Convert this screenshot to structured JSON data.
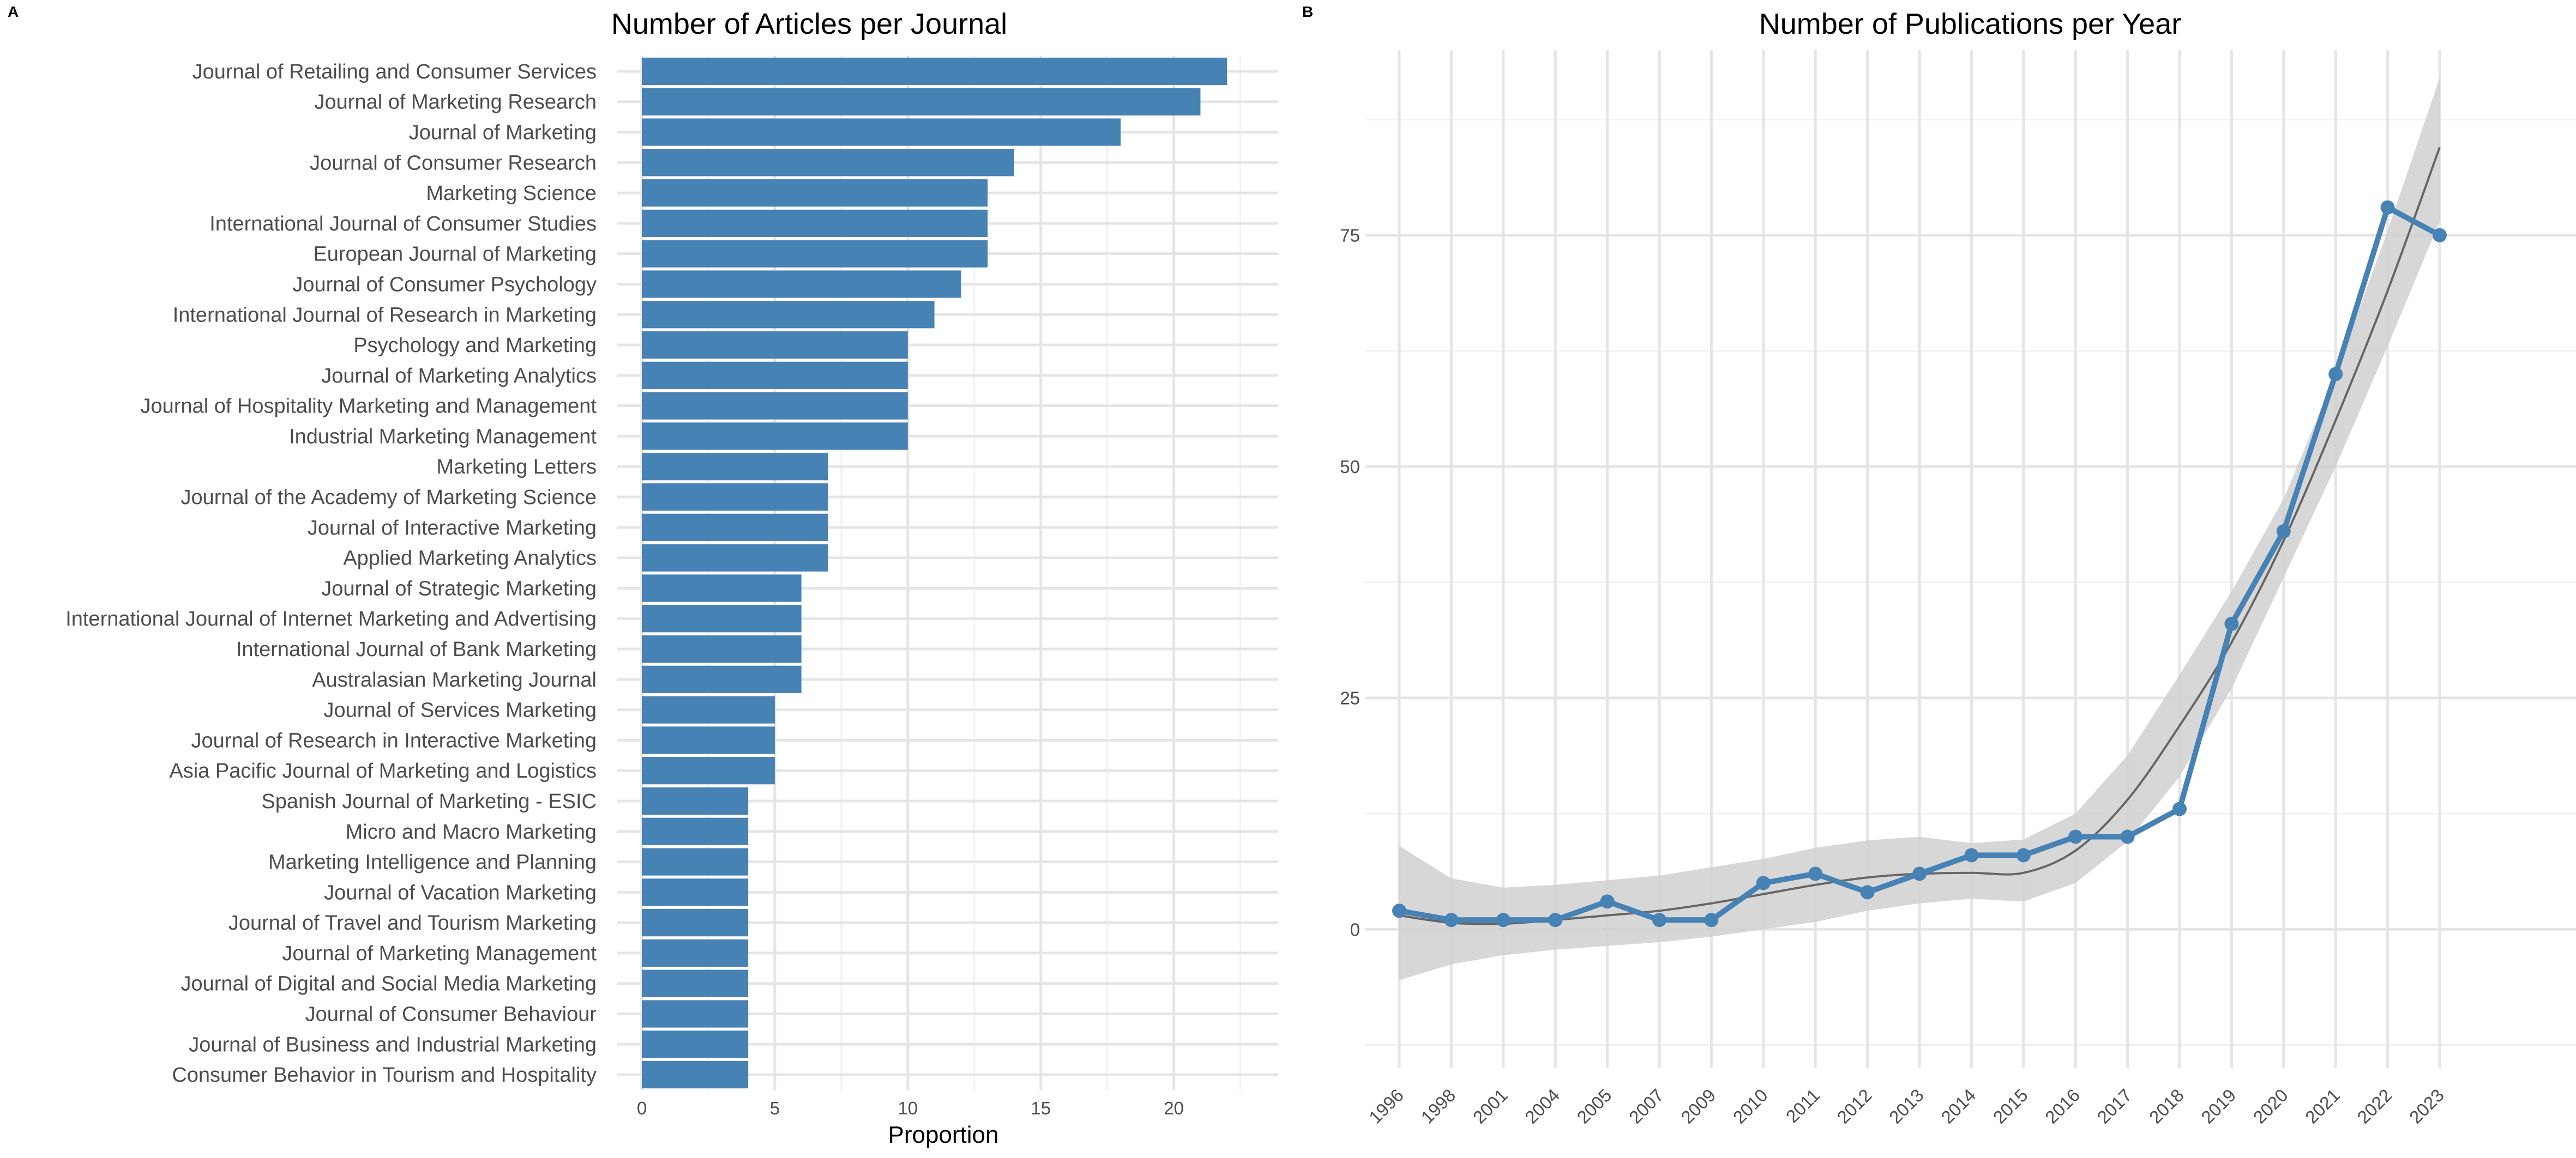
{
  "panels": {
    "a_letter": "A",
    "b_letter": "B"
  },
  "chart_data": [
    {
      "type": "bar",
      "orientation": "horizontal",
      "title": "Number of Articles per Journal",
      "xlabel": "Proportion",
      "ylabel": "",
      "xlim": [
        0,
        23
      ],
      "xticks": [
        0,
        5,
        10,
        15,
        20
      ],
      "bar_color": "#4682B4",
      "grid": true,
      "categories": [
        "Journal of Retailing and Consumer Services",
        "Journal of Marketing Research",
        "Journal of Marketing",
        "Journal of Consumer Research",
        "Marketing Science",
        "International Journal of Consumer Studies",
        "European Journal of Marketing",
        "Journal of Consumer Psychology",
        "International Journal of Research in Marketing",
        "Psychology and Marketing",
        "Journal of Marketing Analytics",
        "Journal of Hospitality Marketing and Management",
        "Industrial Marketing Management",
        "Marketing Letters",
        "Journal of the Academy of Marketing Science",
        "Journal of Interactive Marketing",
        "Applied Marketing Analytics",
        "Journal of Strategic Marketing",
        "International Journal of Internet Marketing and Advertising",
        "International Journal of Bank Marketing",
        "Australasian Marketing Journal",
        "Journal of Services Marketing",
        "Journal of Research in Interactive Marketing",
        "Asia Pacific Journal of Marketing and Logistics",
        "Spanish Journal of Marketing - ESIC",
        "Micro and Macro Marketing",
        "Marketing Intelligence and Planning",
        "Journal of Vacation Marketing",
        "Journal of Travel and Tourism Marketing",
        "Journal of Marketing Management",
        "Journal of Digital and Social Media Marketing",
        "Journal of Consumer Behaviour",
        "Journal of Business and Industrial Marketing",
        "Consumer Behavior in Tourism and Hospitality"
      ],
      "values": [
        22,
        21,
        18,
        14,
        13,
        13,
        13,
        12,
        11,
        10,
        10,
        10,
        10,
        7,
        7,
        7,
        7,
        6,
        6,
        6,
        6,
        5,
        5,
        5,
        4,
        4,
        4,
        4,
        4,
        4,
        4,
        4,
        4,
        4
      ]
    },
    {
      "type": "line",
      "title": "Number of Publications per Year",
      "xlabel": "",
      "ylabel": "",
      "ylim": [
        -15,
        95
      ],
      "yticks": [
        0,
        25,
        50,
        75
      ],
      "line_color": "#4682B4",
      "smooth_color": "#666666",
      "band_color": "#d0d0d0",
      "grid": true,
      "x": [
        "1996",
        "1998",
        "2001",
        "2004",
        "2005",
        "2007",
        "2009",
        "2010",
        "2011",
        "2012",
        "2013",
        "2014",
        "2015",
        "2016",
        "2017",
        "2018",
        "2019",
        "2020",
        "2021",
        "2022",
        "2023"
      ],
      "values": [
        2,
        1,
        1,
        1,
        3,
        1,
        1,
        5,
        6,
        4,
        6,
        8,
        8,
        10,
        10,
        13,
        33,
        43,
        60,
        78,
        75
      ],
      "smooth": [
        1.5,
        0.7,
        0.6,
        1.0,
        1.5,
        2.0,
        2.8,
        3.8,
        4.8,
        5.6,
        6.0,
        6.1,
        6.1,
        8.5,
        14.0,
        22.0,
        31.0,
        42.0,
        55.0,
        69.0,
        84.5
      ],
      "band_lower": [
        -5.5,
        -3.8,
        -2.8,
        -2.2,
        -1.8,
        -1.4,
        -0.8,
        0.0,
        0.8,
        2.0,
        2.8,
        3.3,
        3.0,
        5.0,
        9.5,
        16.5,
        26.0,
        38.0,
        50.0,
        63.0,
        76.5
      ],
      "band_upper": [
        9.0,
        5.5,
        4.5,
        4.8,
        5.3,
        5.8,
        6.7,
        7.6,
        8.8,
        9.6,
        10.0,
        9.3,
        9.7,
        12.5,
        18.8,
        27.5,
        36.5,
        46.5,
        60.0,
        75.5,
        92.0
      ]
    }
  ]
}
